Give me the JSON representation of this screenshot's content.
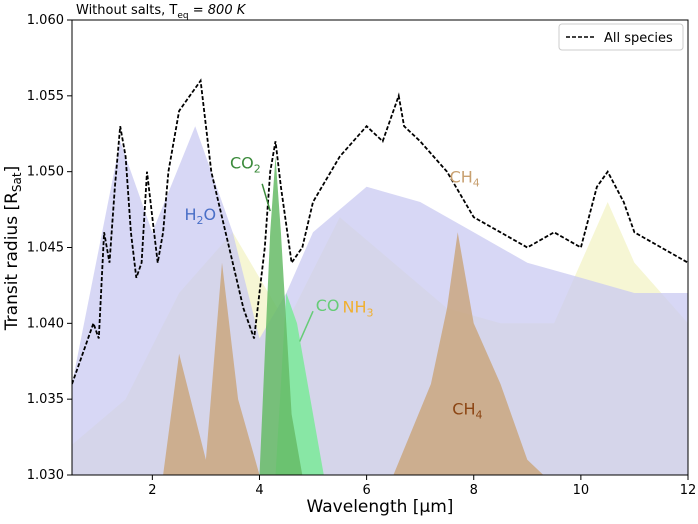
{
  "chart_data": {
    "type": "line",
    "title": "Without salts, T",
    "title_sub": "eq",
    "title_tail": " = 800 K",
    "xlabel": "Wavelength [μm]",
    "ylabel": "Transit radius [R",
    "ylabel_sub": "Sat",
    "ylabel_tail": "]",
    "xlim": [
      0.5,
      12
    ],
    "ylim": [
      1.03,
      1.06
    ],
    "xticks": [
      2,
      4,
      6,
      8,
      10,
      12
    ],
    "yticks": [
      1.03,
      1.035,
      1.04,
      1.045,
      1.05,
      1.055,
      1.06
    ],
    "ytick_labels": [
      "1.030",
      "1.035",
      "1.040",
      "1.045",
      "1.050",
      "1.055",
      "1.060"
    ],
    "legend": {
      "position": "top-right",
      "entries": [
        "All species"
      ]
    },
    "series": [
      {
        "name": "All species",
        "style": "dashed",
        "color": "#000000",
        "x": [
          0.5,
          0.7,
          0.9,
          1.0,
          1.1,
          1.2,
          1.3,
          1.4,
          1.5,
          1.6,
          1.7,
          1.8,
          1.9,
          2.0,
          2.1,
          2.2,
          2.3,
          2.5,
          2.7,
          2.9,
          3.1,
          3.3,
          3.5,
          3.7,
          3.9,
          4.1,
          4.2,
          4.3,
          4.4,
          4.6,
          4.8,
          5.0,
          5.5,
          6.0,
          6.3,
          6.6,
          6.7,
          7.0,
          7.5,
          8.0,
          8.5,
          9.0,
          9.5,
          10.0,
          10.3,
          10.5,
          10.8,
          11.0,
          11.5,
          12.0
        ],
        "y": [
          1.036,
          1.038,
          1.04,
          1.039,
          1.046,
          1.044,
          1.049,
          1.053,
          1.051,
          1.046,
          1.043,
          1.044,
          1.05,
          1.047,
          1.044,
          1.046,
          1.05,
          1.054,
          1.055,
          1.056,
          1.05,
          1.047,
          1.044,
          1.041,
          1.039,
          1.045,
          1.05,
          1.052,
          1.049,
          1.044,
          1.045,
          1.048,
          1.051,
          1.053,
          1.052,
          1.055,
          1.053,
          1.052,
          1.05,
          1.047,
          1.046,
          1.045,
          1.046,
          1.045,
          1.049,
          1.05,
          1.048,
          1.046,
          1.045,
          1.044
        ]
      },
      {
        "name": "H2O",
        "color": "#c9c9f2",
        "x": [
          0.5,
          1.4,
          2.0,
          2.8,
          3.5,
          4.0,
          4.5,
          5.0,
          6.0,
          7.0,
          8.0,
          9.0,
          10.0,
          11.0,
          12.0
        ],
        "y": [
          1.036,
          1.052,
          1.046,
          1.053,
          1.046,
          1.039,
          1.042,
          1.046,
          1.049,
          1.048,
          1.046,
          1.044,
          1.043,
          1.042,
          1.042
        ]
      },
      {
        "name": "CH4",
        "color": "#c8a070",
        "x": [
          0.5,
          2.2,
          2.5,
          3.0,
          3.3,
          3.6,
          4.0,
          6.5,
          7.2,
          7.5,
          7.7,
          8.0,
          8.5,
          9.0,
          9.3,
          12.0
        ],
        "y": [
          1.03,
          1.03,
          1.038,
          1.031,
          1.044,
          1.035,
          1.03,
          1.03,
          1.036,
          1.041,
          1.046,
          1.04,
          1.036,
          1.031,
          1.03,
          1.03
        ]
      },
      {
        "name": "NH3",
        "color": "#f0f0b8",
        "x": [
          0.5,
          1.5,
          2.5,
          3.5,
          4.5,
          5.5,
          6.5,
          7.5,
          8.5,
          9.5,
          10.5,
          11.0,
          12.0
        ],
        "y": [
          1.032,
          1.035,
          1.042,
          1.046,
          1.04,
          1.047,
          1.044,
          1.041,
          1.04,
          1.04,
          1.048,
          1.044,
          1.04
        ]
      },
      {
        "name": "CO2",
        "color": "#66bb66",
        "x": [
          4.0,
          4.2,
          4.3,
          4.4,
          4.6,
          4.8
        ],
        "y": [
          1.03,
          1.046,
          1.051,
          1.046,
          1.034,
          1.03
        ]
      },
      {
        "name": "CO",
        "color": "#66ee88",
        "x": [
          4.3,
          4.5,
          4.7,
          4.9,
          5.2
        ],
        "y": [
          1.03,
          1.042,
          1.04,
          1.036,
          1.03
        ]
      }
    ],
    "annotations": [
      {
        "text": "H",
        "sub": "2",
        "tail": "O",
        "x": 2.6,
        "y": 1.0468,
        "color": "#4a6fc7"
      },
      {
        "text": "CO",
        "sub": "2",
        "tail": "",
        "x": 3.45,
        "y": 1.0502,
        "color": "#3a8a3a"
      },
      {
        "text": "CO",
        "sub": "",
        "tail": "",
        "x": 5.05,
        "y": 1.0408,
        "color": "#66cc77"
      },
      {
        "text": "NH",
        "sub": "3",
        "tail": "",
        "x": 5.55,
        "y": 1.0407,
        "color": "#f0b030"
      },
      {
        "text": "CH",
        "sub": "4",
        "tail": "",
        "x": 7.6,
        "y": 1.034,
        "color": "#8b4513"
      },
      {
        "text": "CH",
        "sub": "4",
        "tail": "",
        "x": 7.55,
        "y": 1.0493,
        "color": "#c8a070"
      }
    ]
  }
}
